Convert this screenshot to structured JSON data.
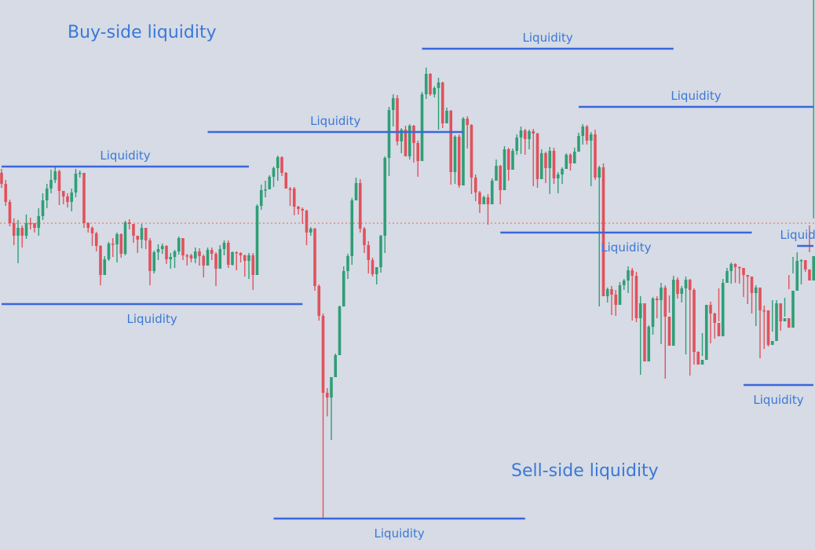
{
  "colors": {
    "background": "#d6dbe5",
    "level_line": "#3b66dd",
    "label_text": "#3b78d8",
    "bull_candle": "#2f9e76",
    "bear_candle": "#e0525c",
    "reference_line": "#e56a4f"
  },
  "headings": {
    "buy_side": "Buy-side liquidity",
    "sell_side": "Sell-side liquidity"
  },
  "chart_data": {
    "type": "candlestick",
    "title": "",
    "xlabel": "",
    "ylabel": "",
    "axes": "none",
    "grid": false,
    "ylim": [
      0,
      700
    ],
    "reference_line": {
      "value": 284,
      "style": "dotted"
    },
    "liquidity_levels": [
      {
        "label": "Liquidity",
        "side": "buy",
        "value": 212,
        "from": 0,
        "to": 60
      },
      {
        "label": "Liquidity",
        "side": "buy",
        "value": 168,
        "from": 50,
        "to": 112
      },
      {
        "label": "Liquidity",
        "side": "buy",
        "value": 62,
        "from": 102,
        "to": 163
      },
      {
        "label": "Liquidity",
        "side": "buy",
        "value": 136,
        "from": 140,
        "to": 201
      },
      {
        "label": "Liquidity",
        "side": "buy",
        "value": 313,
        "from": 193,
        "to": 255
      },
      {
        "label": "Liquidity",
        "side": "sell",
        "value": 387,
        "from": 0,
        "to": 73
      },
      {
        "label": "Liquidity",
        "side": "sell",
        "value": 660,
        "from": 66,
        "to": 127
      },
      {
        "label": "Liquidity",
        "side": "sell",
        "value": 296,
        "from": 121,
        "to": 182
      },
      {
        "label": "Liquidity",
        "side": "sell",
        "value": 490,
        "from": 180,
        "to": 240
      }
    ],
    "candles_open": [
      220,
      234,
      257,
      284,
      300,
      290,
      300,
      284,
      284,
      290,
      275,
      255,
      240,
      229,
      218,
      243,
      250,
      257,
      245,
      221,
      220,
      284,
      290,
      297,
      313,
      350,
      330,
      310,
      311,
      298,
      323,
      283,
      285,
      300,
      305,
      290,
      306,
      345,
      321,
      317,
      313,
      330,
      327,
      320,
      303,
      325,
      325,
      329,
      320,
      326,
      338,
      318,
      323,
      342,
      317,
      309,
      337,
      321,
      322,
      325,
      332,
      325,
      350,
      262,
      242,
      241,
      225,
      214,
      200,
      220,
      240,
      240,
      263,
      266,
      268,
      296,
      291,
      364,
      402,
      500,
      506,
      480,
      452,
      390,
      345,
      326,
      255,
      233,
      291,
      312,
      331,
      349,
      340,
      300,
      201,
      140,
      125,
      180,
      165,
      199,
      160,
      182,
      205,
      120,
      94,
      120,
      112,
      105,
      157,
      141,
      219,
      174,
      236,
      151,
      159,
      226,
      245,
      260,
      251,
      260,
      230,
      211,
      242,
      190,
      216,
      192,
      175,
      166,
      177,
      167,
      170,
      228,
      195,
      214,
      192,
      227,
      222,
      215,
      197,
      208,
      193,
      173,
      161,
      179,
      171,
      226,
      213,
      377,
      368,
      375,
      388,
      363,
      357,
      344,
      351,
      405,
      386,
      460,
      416,
      380,
      382,
      366,
      403,
      440,
      356,
      374,
      367,
      356,
      369,
      448,
      464,
      458,
      388,
      399,
      411,
      428,
      360,
      345,
      336,
      340,
      341,
      350,
      352,
      373,
      366,
      395,
      395,
      439,
      434,
      386,
      409,
      405,
      417,
      370,
      332,
      331,
      343,
      357,
      326
    ],
    "candles_close": [
      234,
      257,
      284,
      300,
      290,
      300,
      284,
      284,
      290,
      275,
      255,
      240,
      229,
      218,
      243,
      250,
      257,
      245,
      221,
      220,
      284,
      290,
      297,
      313,
      350,
      330,
      310,
      311,
      298,
      323,
      283,
      285,
      300,
      305,
      290,
      306,
      345,
      321,
      317,
      313,
      330,
      327,
      320,
      303,
      325,
      325,
      329,
      320,
      326,
      338,
      318,
      323,
      342,
      317,
      309,
      337,
      321,
      322,
      325,
      332,
      325,
      350,
      262,
      242,
      241,
      225,
      214,
      200,
      220,
      240,
      240,
      263,
      266,
      268,
      296,
      291,
      364,
      402,
      500,
      506,
      480,
      452,
      390,
      345,
      326,
      255,
      233,
      291,
      312,
      331,
      349,
      340,
      300,
      201,
      140,
      125,
      180,
      165,
      199,
      160,
      182,
      205,
      120,
      94,
      120,
      112,
      105,
      157,
      141,
      219,
      174,
      236,
      151,
      159,
      226,
      245,
      260,
      251,
      260,
      230,
      211,
      242,
      190,
      216,
      192,
      175,
      166,
      177,
      167,
      170,
      228,
      195,
      214,
      192,
      227,
      222,
      215,
      197,
      208,
      193,
      173,
      161,
      179,
      171,
      226,
      213,
      377,
      368,
      375,
      388,
      363,
      357,
      344,
      351,
      405,
      386,
      460,
      416,
      380,
      382,
      366,
      403,
      440,
      356,
      374,
      367,
      356,
      369,
      448,
      464,
      458,
      388,
      399,
      411,
      428,
      360,
      345,
      336,
      340,
      341,
      350,
      352,
      373,
      366,
      395,
      395,
      439,
      434,
      386,
      409,
      405,
      417,
      370,
      332,
      331,
      343,
      357,
      326,
      283
    ],
    "candles_high": [
      215,
      229,
      254,
      278,
      280,
      287,
      273,
      277,
      284,
      265,
      246,
      234,
      216,
      212,
      216,
      243,
      246,
      240,
      215,
      217,
      223,
      283,
      288,
      295,
      312,
      326,
      308,
      303,
      296,
      297,
      281,
      279,
      298,
      302,
      285,
      292,
      303,
      319,
      311,
      310,
      312,
      322,
      318,
      301,
      304,
      323,
      323,
      315,
      316,
      324,
      315,
      315,
      321,
      312,
      306,
      306,
      320,
      320,
      321,
      324,
      322,
      322,
      260,
      235,
      230,
      223,
      212,
      198,
      199,
      219,
      238,
      238,
      262,
      264,
      267,
      289,
      290,
      362,
      399,
      494,
      504,
      450,
      389,
      339,
      323,
      252,
      226,
      228,
      289,
      307,
      328,
      347,
      299,
      199,
      136,
      120,
      121,
      163,
      160,
      158,
      159,
      179,
      117,
      86,
      93,
      110,
      99,
      104,
      137,
      140,
      172,
      171,
      149,
      148,
      158,
      222,
      243,
      249,
      247,
      227,
      203,
      210,
      186,
      188,
      189,
      171,
      161,
      164,
      165,
      164,
      169,
      190,
      193,
      187,
      188,
      219,
      213,
      195,
      195,
      188,
      169,
      158,
      159,
      168,
      165,
      211,
      208,
      366,
      364,
      369,
      359,
      355,
      339,
      341,
      346,
      377,
      386,
      414,
      378,
      377,
      360,
      363,
      398,
      351,
      353,
      364,
      352,
      355,
      367,
      447,
      453,
      388,
      384,
      398,
      409,
      355,
      341,
      334,
      335,
      339,
      345,
      350,
      368,
      363,
      393,
      389,
      432,
      382,
      382,
      405,
      403,
      368,
      327,
      321,
      330,
      339,
      321,
      278
    ],
    "candles_low": [
      239,
      262,
      288,
      312,
      335,
      315,
      304,
      292,
      296,
      300,
      280,
      265,
      246,
      233,
      261,
      260,
      264,
      269,
      251,
      226,
      290,
      296,
      313,
      320,
      363,
      350,
      332,
      327,
      334,
      328,
      325,
      292,
      309,
      322,
      316,
      317,
      363,
      348,
      331,
      323,
      336,
      342,
      341,
      324,
      331,
      338,
      334,
      335,
      338,
      353,
      328,
      331,
      364,
      330,
      325,
      341,
      338,
      344,
      334,
      352,
      355,
      369,
      268,
      267,
      251,
      240,
      238,
      230,
      224,
      225,
      262,
      274,
      273,
      285,
      312,
      300,
      370,
      408,
      660,
      530,
      560,
      459,
      398,
      366,
      355,
      337,
      240,
      296,
      322,
      348,
      352,
      362,
      347,
      322,
      224,
      161,
      185,
      195,
      179,
      203,
      207,
      225,
      144,
      126,
      122,
      124,
      165,
      163,
      150,
      235,
      234,
      239,
      175,
      189,
      247,
      256,
      271,
      260,
      286,
      243,
      216,
      260,
      221,
      230,
      203,
      197,
      196,
      197,
      190,
      237,
      239,
      224,
      233,
      247,
      234,
      246,
      234,
      215,
      217,
      208,
      185,
      184,
      184,
      237,
      229,
      390,
      373,
      385,
      401,
      402,
      375,
      369,
      373,
      408,
      410,
      477,
      430,
      422,
      426,
      405,
      438,
      482,
      376,
      381,
      380,
      385,
      451,
      478,
      464,
      460,
      424,
      421,
      437,
      431,
      367,
      366,
      348,
      361,
      360,
      361,
      378,
      387,
      399,
      415,
      456,
      444,
      441,
      422,
      417,
      421,
      379,
      350,
      348,
      367,
      362,
      346,
      287
    ]
  }
}
